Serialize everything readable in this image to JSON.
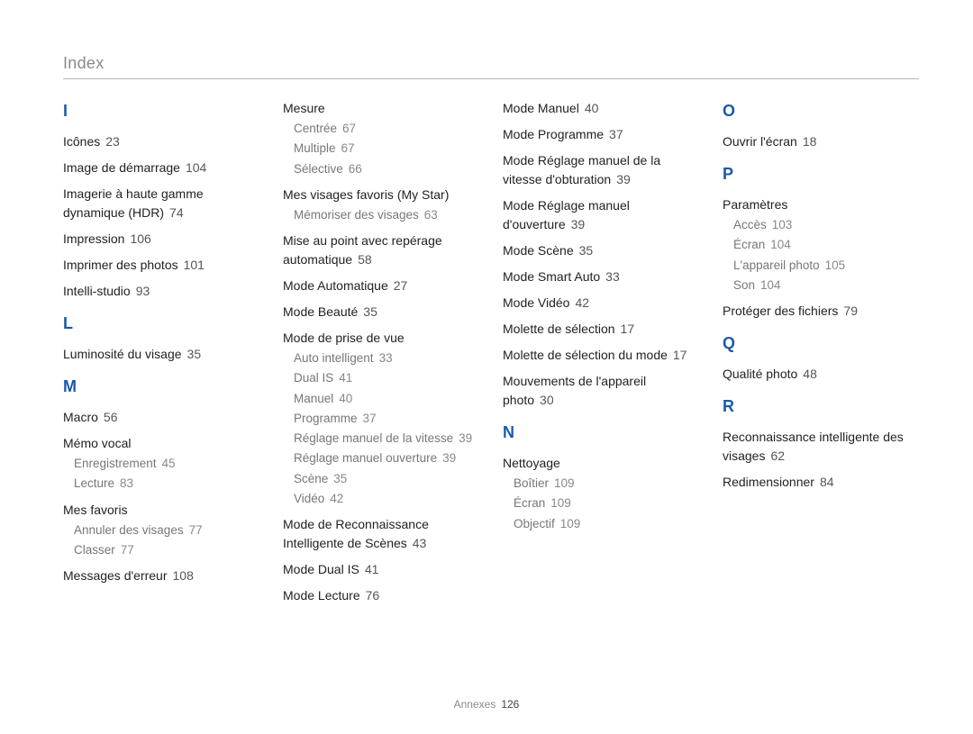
{
  "page_title": "Index",
  "footer_label": "Annexes",
  "footer_page": "126",
  "columns": [
    [
      {
        "type": "letter",
        "text": "I"
      },
      {
        "type": "entry",
        "label": "Icônes",
        "page": "23"
      },
      {
        "type": "entry",
        "label": "Image de démarrage",
        "page": "104"
      },
      {
        "type": "entry",
        "label": "Imagerie à haute gamme dynamique (HDR)",
        "page": "74"
      },
      {
        "type": "entry",
        "label": "Impression",
        "page": "106"
      },
      {
        "type": "entry",
        "label": "Imprimer des photos",
        "page": "101"
      },
      {
        "type": "entry",
        "label": "Intelli-studio",
        "page": "93"
      },
      {
        "type": "letter",
        "text": "L"
      },
      {
        "type": "entry",
        "label": "Luminosité du visage",
        "page": "35"
      },
      {
        "type": "letter",
        "text": "M"
      },
      {
        "type": "entry",
        "label": "Macro",
        "page": "56"
      },
      {
        "type": "entry",
        "label": "Mémo vocal",
        "subs": [
          {
            "label": "Enregistrement",
            "page": "45"
          },
          {
            "label": "Lecture",
            "page": "83"
          }
        ]
      },
      {
        "type": "entry",
        "label": "Mes favoris",
        "subs": [
          {
            "label": "Annuler des visages",
            "page": "77"
          },
          {
            "label": "Classer",
            "page": "77"
          }
        ]
      },
      {
        "type": "entry",
        "label": "Messages d'erreur",
        "page": "108"
      }
    ],
    [
      {
        "type": "entry",
        "label": "Mesure",
        "subs": [
          {
            "label": "Centrée",
            "page": "67"
          },
          {
            "label": "Multiple",
            "page": "67"
          },
          {
            "label": "Sélective",
            "page": "66"
          }
        ]
      },
      {
        "type": "entry",
        "label": "Mes visages favoris (My Star)",
        "subs": [
          {
            "label": "Mémoriser des visages",
            "page": "63"
          }
        ]
      },
      {
        "type": "entry",
        "label": "Mise au point avec repérage automatique",
        "page": "58"
      },
      {
        "type": "entry",
        "label": "Mode Automatique",
        "page": "27"
      },
      {
        "type": "entry",
        "label": "Mode Beauté",
        "page": "35"
      },
      {
        "type": "entry",
        "label": "Mode de prise de vue",
        "subs": [
          {
            "label": "Auto intelligent",
            "page": "33"
          },
          {
            "label": "Dual IS",
            "page": "41"
          },
          {
            "label": "Manuel",
            "page": "40"
          },
          {
            "label": "Programme",
            "page": "37"
          },
          {
            "label": "Réglage manuel de la vitesse",
            "page": "39"
          },
          {
            "label": "Réglage manuel ouverture",
            "page": "39"
          },
          {
            "label": "Scène",
            "page": "35"
          },
          {
            "label": "Vidéo",
            "page": "42"
          }
        ]
      },
      {
        "type": "entry",
        "label": "Mode de Reconnaissance Intelligente de Scènes",
        "page": "43"
      },
      {
        "type": "entry",
        "label": "Mode Dual IS",
        "page": "41"
      },
      {
        "type": "entry",
        "label": "Mode Lecture",
        "page": "76"
      }
    ],
    [
      {
        "type": "entry",
        "label": "Mode Manuel",
        "page": "40"
      },
      {
        "type": "entry",
        "label": "Mode Programme",
        "page": "37"
      },
      {
        "type": "entry",
        "label": "Mode Réglage manuel de la vitesse d'obturation",
        "page": "39"
      },
      {
        "type": "entry",
        "label": "Mode Réglage manuel d'ouverture",
        "page": "39"
      },
      {
        "type": "entry",
        "label": "Mode Scène",
        "page": "35"
      },
      {
        "type": "entry",
        "label": "Mode Smart Auto",
        "page": "33"
      },
      {
        "type": "entry",
        "label": "Mode Vidéo",
        "page": "42"
      },
      {
        "type": "entry",
        "label": "Molette de sélection",
        "page": "17"
      },
      {
        "type": "entry",
        "label": "Molette de sélection du mode",
        "page": "17"
      },
      {
        "type": "entry",
        "label": "Mouvements de l'appareil photo",
        "page": "30"
      },
      {
        "type": "letter",
        "text": "N"
      },
      {
        "type": "entry",
        "label": "Nettoyage",
        "subs": [
          {
            "label": "Boîtier",
            "page": "109"
          },
          {
            "label": "Écran",
            "page": "109"
          },
          {
            "label": "Objectif",
            "page": "109"
          }
        ]
      }
    ],
    [
      {
        "type": "letter",
        "text": "O"
      },
      {
        "type": "entry",
        "label": "Ouvrir l'écran",
        "page": "18"
      },
      {
        "type": "letter",
        "text": "P"
      },
      {
        "type": "entry",
        "label": "Paramètres",
        "subs": [
          {
            "label": "Accès",
            "page": "103"
          },
          {
            "label": "Écran",
            "page": "104"
          },
          {
            "label": "L'appareil photo",
            "page": "105"
          },
          {
            "label": "Son",
            "page": "104"
          }
        ]
      },
      {
        "type": "entry",
        "label": "Protéger des fichiers",
        "page": "79"
      },
      {
        "type": "letter",
        "text": "Q"
      },
      {
        "type": "entry",
        "label": "Qualité photo",
        "page": "48"
      },
      {
        "type": "letter",
        "text": "R"
      },
      {
        "type": "entry",
        "label": "Reconnaissance intelligente des visages",
        "page": "62"
      },
      {
        "type": "entry",
        "label": "Redimensionner",
        "page": "84"
      }
    ]
  ]
}
